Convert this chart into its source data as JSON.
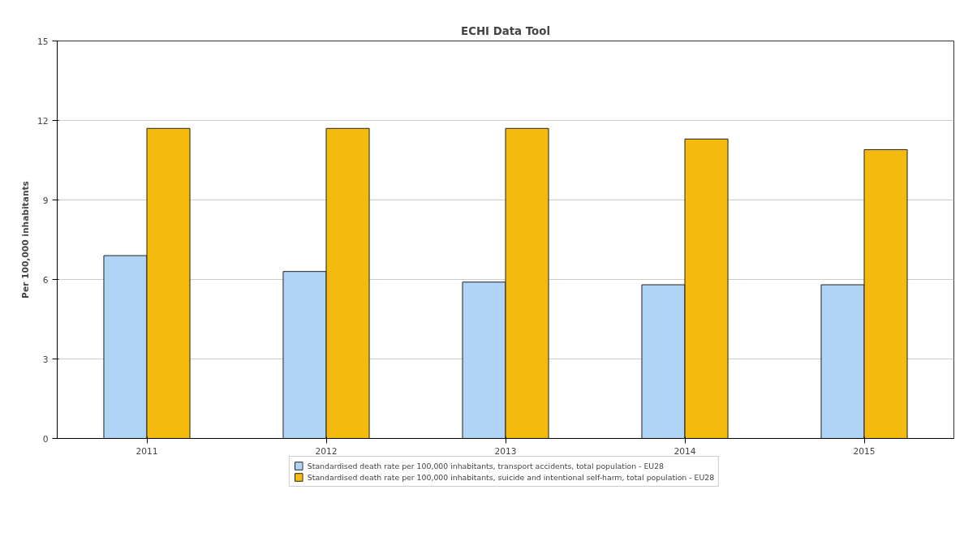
{
  "chart_data": {
    "type": "bar",
    "title": "ECHI Data Tool",
    "ylabel": "Per 100,000 inhabitants",
    "categories": [
      "2011",
      "2012",
      "2013",
      "2014",
      "2015"
    ],
    "series": [
      {
        "name": "Standardised death rate per 100,000 inhabitants, transport accidents, total population - EU28",
        "color": "#b0d4f5",
        "values": [
          6.9,
          6.3,
          5.9,
          5.8,
          5.8
        ]
      },
      {
        "name": "Standardised death rate per 100,000 inhabitants, suicide and intentional self-harm, total population - EU28",
        "color": "#f4bb0e",
        "values": [
          11.7,
          11.7,
          11.7,
          11.3,
          10.9
        ]
      }
    ],
    "ylim": [
      0,
      15
    ],
    "yticks": [
      0,
      3,
      6,
      9,
      12,
      15
    ],
    "grid": "y",
    "legend": "bottom"
  }
}
